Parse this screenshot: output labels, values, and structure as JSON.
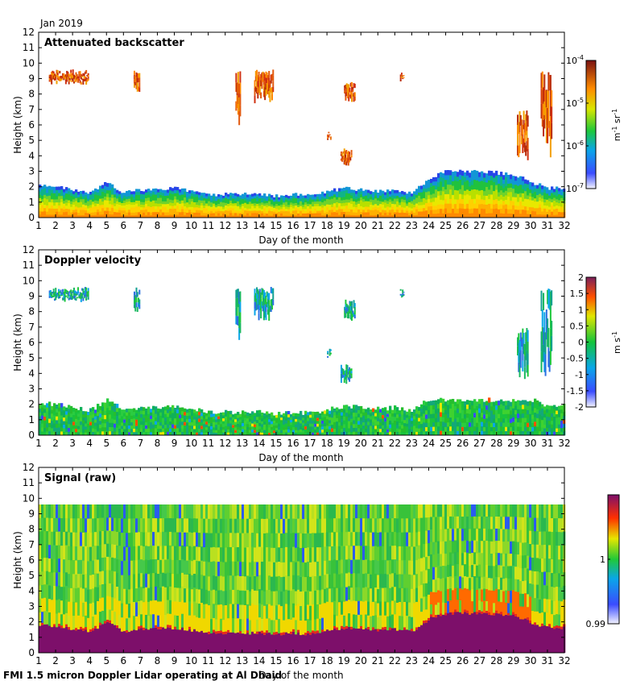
{
  "header": {
    "month_label": "Jan 2019"
  },
  "footer": {
    "caption": "FMI 1.5 micron Doppler Lidar operating at Al Dhaid"
  },
  "chart_data": [
    {
      "type": "heatmap",
      "title": "Attenuated backscatter",
      "xlabel": "Day of the month",
      "ylabel": "Height (km)",
      "xlim": [
        1,
        32
      ],
      "ylim": [
        0,
        12
      ],
      "xticks": [
        "1",
        "2",
        "3",
        "4",
        "5",
        "6",
        "7",
        "8",
        "9",
        "10",
        "11",
        "12",
        "13",
        "14",
        "15",
        "16",
        "17",
        "18",
        "19",
        "20",
        "21",
        "22",
        "23",
        "24",
        "25",
        "26",
        "27",
        "28",
        "29",
        "30",
        "31",
        "32"
      ],
      "yticks": [
        "0",
        "1",
        "2",
        "3",
        "4",
        "5",
        "6",
        "7",
        "8",
        "9",
        "10",
        "11",
        "12"
      ],
      "colorbar": {
        "scale": "log",
        "unit": "m-1 sr-1",
        "tick_labels": [
          "10-7",
          "10-6",
          "10-5",
          "10-4"
        ],
        "range": [
          1e-07,
          0.0001
        ]
      },
      "summary": {
        "boundary_layer_top_km": [
          2.1,
          2.0,
          1.8,
          1.6,
          2.3,
          1.6,
          1.8,
          1.8,
          1.9,
          1.7,
          1.5,
          1.5,
          1.5,
          1.5,
          1.4,
          1.5,
          1.4,
          1.7,
          1.9,
          1.8,
          1.7,
          1.8,
          1.6,
          2.6,
          3.0,
          3.0,
          3.0,
          2.9,
          2.8,
          2.3,
          1.9
        ],
        "cloud_layers": [
          {
            "start_day": 1.6,
            "end_day": 3.9,
            "base_km": 8.6,
            "top_km": 9.6
          },
          {
            "start_day": 6.6,
            "end_day": 6.9,
            "base_km": 7.8,
            "top_km": 9.6
          },
          {
            "start_day": 12.6,
            "end_day": 12.9,
            "base_km": 5.9,
            "top_km": 9.6
          },
          {
            "start_day": 13.7,
            "end_day": 14.8,
            "base_km": 7.4,
            "top_km": 9.6
          },
          {
            "start_day": 18.0,
            "end_day": 18.2,
            "base_km": 5.0,
            "top_km": 5.6
          },
          {
            "start_day": 18.8,
            "end_day": 19.4,
            "base_km": 3.3,
            "top_km": 4.6
          },
          {
            "start_day": 19.0,
            "end_day": 19.6,
            "base_km": 7.4,
            "top_km": 8.8
          },
          {
            "start_day": 22.3,
            "end_day": 22.5,
            "base_km": 8.8,
            "top_km": 9.5
          },
          {
            "start_day": 29.2,
            "end_day": 29.8,
            "base_km": 3.6,
            "top_km": 7.0
          },
          {
            "start_day": 30.6,
            "end_day": 31.2,
            "base_km": 3.8,
            "top_km": 9.5
          }
        ]
      }
    },
    {
      "type": "heatmap",
      "title": "Doppler velocity",
      "xlabel": "Day of the month",
      "ylabel": "Height (km)",
      "xlim": [
        1,
        32
      ],
      "ylim": [
        0,
        12
      ],
      "xticks": [
        "1",
        "2",
        "3",
        "4",
        "5",
        "6",
        "7",
        "8",
        "9",
        "10",
        "11",
        "12",
        "13",
        "14",
        "15",
        "16",
        "17",
        "18",
        "19",
        "20",
        "21",
        "22",
        "23",
        "24",
        "25",
        "26",
        "27",
        "28",
        "29",
        "30",
        "31",
        "32"
      ],
      "yticks": [
        "0",
        "1",
        "2",
        "3",
        "4",
        "5",
        "6",
        "7",
        "8",
        "9",
        "10",
        "11",
        "12"
      ],
      "colorbar": {
        "scale": "linear",
        "unit": "m s-1",
        "tick_labels": [
          "2",
          "1.5",
          "1",
          "0.5",
          "0",
          "-0.5",
          "-1",
          "-1.5",
          "-2"
        ],
        "range": [
          -2,
          2
        ]
      },
      "summary": {
        "note": "near-zero velocities dominate within boundary layer and cloud layers"
      }
    },
    {
      "type": "heatmap",
      "title": "Signal (raw)",
      "xlabel": "Day of the month",
      "ylabel": "Height (km)",
      "xlim": [
        1,
        32
      ],
      "ylim": [
        0,
        12
      ],
      "xticks": [
        "1",
        "2",
        "3",
        "4",
        "5",
        "6",
        "7",
        "8",
        "9",
        "10",
        "11",
        "12",
        "13",
        "14",
        "15",
        "16",
        "17",
        "18",
        "19",
        "20",
        "21",
        "22",
        "23",
        "24",
        "25",
        "26",
        "27",
        "28",
        "29",
        "30",
        "31",
        "32"
      ],
      "yticks": [
        "0",
        "1",
        "2",
        "3",
        "4",
        "5",
        "6",
        "7",
        "8",
        "9",
        "10",
        "11",
        "12"
      ],
      "colorbar": {
        "scale": "linear",
        "tick_labels": [
          "1",
          "0.99"
        ],
        "range": [
          0.99,
          1.01
        ]
      },
      "summary": {
        "max_height_km": 9.6,
        "note": "saturated signal below boundary-layer top"
      }
    }
  ]
}
